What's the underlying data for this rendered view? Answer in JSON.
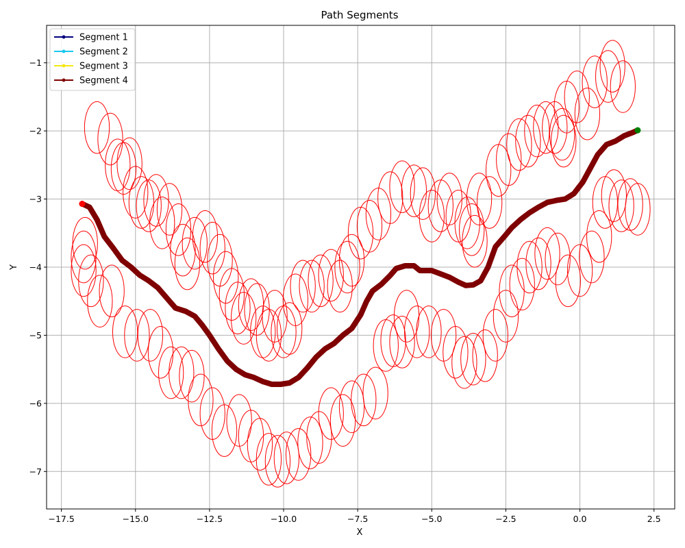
{
  "chart_data": {
    "type": "line",
    "title": "Path Segments",
    "xlabel": "X",
    "ylabel": "Y",
    "xlim": [
      -18.0,
      3.2
    ],
    "ylim": [
      -7.55,
      -0.45
    ],
    "x_ticks": [
      -17.5,
      -15.0,
      -12.5,
      -10.0,
      -7.5,
      -5.0,
      -2.5,
      0.0,
      2.5
    ],
    "x_tick_labels": [
      "−17.5",
      "−15.0",
      "−12.5",
      "−10.0",
      "−7.5",
      "−5.0",
      "−2.5",
      "0.0",
      "2.5"
    ],
    "y_ticks": [
      -7,
      -6,
      -5,
      -4,
      -3,
      -2,
      -1
    ],
    "y_tick_labels": [
      "−7",
      "−6",
      "−5",
      "−4",
      "−3",
      "−2",
      "−1"
    ],
    "grid": true,
    "legend_position": "top-left",
    "series": [
      {
        "name": "Segment 1",
        "color": "#00007f",
        "points": []
      },
      {
        "name": "Segment 2",
        "color": "#18c8f0",
        "points": []
      },
      {
        "name": "Segment 3",
        "color": "#f5e814",
        "points": []
      },
      {
        "name": "Segment 4",
        "color": "#7f0000",
        "points": [
          [
            -16.8,
            -3.07
          ],
          [
            -16.55,
            -3.12
          ],
          [
            -16.3,
            -3.3
          ],
          [
            -16.05,
            -3.55
          ],
          [
            -15.75,
            -3.72
          ],
          [
            -15.45,
            -3.9
          ],
          [
            -15.15,
            -4.0
          ],
          [
            -14.85,
            -4.12
          ],
          [
            -14.55,
            -4.2
          ],
          [
            -14.25,
            -4.3
          ],
          [
            -13.95,
            -4.45
          ],
          [
            -13.65,
            -4.6
          ],
          [
            -13.3,
            -4.65
          ],
          [
            -13.0,
            -4.72
          ],
          [
            -12.75,
            -4.85
          ],
          [
            -12.5,
            -5.0
          ],
          [
            -12.2,
            -5.2
          ],
          [
            -11.9,
            -5.38
          ],
          [
            -11.6,
            -5.5
          ],
          [
            -11.3,
            -5.58
          ],
          [
            -11.0,
            -5.62
          ],
          [
            -10.7,
            -5.68
          ],
          [
            -10.4,
            -5.72
          ],
          [
            -10.1,
            -5.72
          ],
          [
            -9.8,
            -5.7
          ],
          [
            -9.5,
            -5.62
          ],
          [
            -9.2,
            -5.48
          ],
          [
            -8.9,
            -5.32
          ],
          [
            -8.6,
            -5.2
          ],
          [
            -8.3,
            -5.12
          ],
          [
            -8.0,
            -5.0
          ],
          [
            -7.7,
            -4.9
          ],
          [
            -7.4,
            -4.7
          ],
          [
            -7.2,
            -4.5
          ],
          [
            -7.0,
            -4.35
          ],
          [
            -6.7,
            -4.25
          ],
          [
            -6.4,
            -4.12
          ],
          [
            -6.2,
            -4.02
          ],
          [
            -5.9,
            -3.98
          ],
          [
            -5.6,
            -3.98
          ],
          [
            -5.4,
            -4.05
          ],
          [
            -5.0,
            -4.05
          ],
          [
            -4.7,
            -4.1
          ],
          [
            -4.4,
            -4.15
          ],
          [
            -4.1,
            -4.22
          ],
          [
            -3.85,
            -4.27
          ],
          [
            -3.6,
            -4.26
          ],
          [
            -3.35,
            -4.2
          ],
          [
            -3.1,
            -4.0
          ],
          [
            -2.85,
            -3.7
          ],
          [
            -2.55,
            -3.55
          ],
          [
            -2.3,
            -3.42
          ],
          [
            -2.0,
            -3.3
          ],
          [
            -1.7,
            -3.2
          ],
          [
            -1.4,
            -3.12
          ],
          [
            -1.1,
            -3.05
          ],
          [
            -0.8,
            -3.02
          ],
          [
            -0.5,
            -3.0
          ],
          [
            -0.2,
            -2.92
          ],
          [
            0.1,
            -2.75
          ],
          [
            0.35,
            -2.55
          ],
          [
            0.6,
            -2.35
          ],
          [
            0.9,
            -2.2
          ],
          [
            1.2,
            -2.15
          ],
          [
            1.5,
            -2.07
          ],
          [
            1.8,
            -2.02
          ],
          [
            1.95,
            -1.99
          ]
        ]
      }
    ],
    "start_point": {
      "x": -16.8,
      "y": -3.07,
      "color": "#ff0000"
    },
    "end_point": {
      "x": 1.95,
      "y": -1.99,
      "color": "#008000"
    },
    "ellipse_color": "#ff0000",
    "ellipse_rx": 0.42,
    "ellipse_ry": 0.38,
    "ellipses": [
      [
        -16.3,
        -1.95
      ],
      [
        -15.85,
        -2.12
      ],
      [
        -15.6,
        -2.5
      ],
      [
        -15.4,
        -2.55
      ],
      [
        -15.2,
        -2.48
      ],
      [
        -15.0,
        -2.9
      ],
      [
        -14.8,
        -3.05
      ],
      [
        -14.55,
        -3.1
      ],
      [
        -14.3,
        -3.02
      ],
      [
        -14.1,
        -3.35
      ],
      [
        -13.85,
        -3.15
      ],
      [
        -13.55,
        -3.45
      ],
      [
        -13.4,
        -3.75
      ],
      [
        -13.25,
        -3.95
      ],
      [
        -13.0,
        -3.65
      ],
      [
        -12.65,
        -3.55
      ],
      [
        -12.4,
        -3.72
      ],
      [
        -12.15,
        -3.9
      ],
      [
        -11.95,
        -4.15
      ],
      [
        -11.75,
        -4.4
      ],
      [
        -11.55,
        -4.6
      ],
      [
        -11.35,
        -4.75
      ],
      [
        -11.1,
        -4.55
      ],
      [
        -10.9,
        -4.62
      ],
      [
        -10.7,
        -4.95
      ],
      [
        -10.5,
        -5.0
      ],
      [
        -10.3,
        -4.72
      ],
      [
        -10.0,
        -4.95
      ],
      [
        -9.8,
        -4.9
      ],
      [
        -9.6,
        -4.48
      ],
      [
        -9.35,
        -4.28
      ],
      [
        -9.05,
        -4.28
      ],
      [
        -8.75,
        -4.2
      ],
      [
        -8.4,
        -4.12
      ],
      [
        -8.1,
        -4.28
      ],
      [
        -7.85,
        -4.0
      ],
      [
        -7.7,
        -3.9
      ],
      [
        -7.4,
        -3.5
      ],
      [
        -7.1,
        -3.4
      ],
      [
        -6.8,
        -3.22
      ],
      [
        -6.4,
        -2.98
      ],
      [
        -6.0,
        -2.82
      ],
      [
        -5.6,
        -2.88
      ],
      [
        -5.3,
        -2.92
      ],
      [
        -5.0,
        -3.25
      ],
      [
        -4.7,
        -3.1
      ],
      [
        -4.4,
        -3.0
      ],
      [
        -4.1,
        -3.25
      ],
      [
        -3.8,
        -3.35
      ],
      [
        -3.65,
        -3.45
      ],
      [
        -3.55,
        -3.62
      ],
      [
        -3.4,
        -3.0
      ],
      [
        -3.05,
        -3.05
      ],
      [
        -2.75,
        -2.58
      ],
      [
        -2.4,
        -2.42
      ],
      [
        -2.05,
        -2.2
      ],
      [
        -1.75,
        -2.15
      ],
      [
        -1.45,
        -2.0
      ],
      [
        -1.15,
        -1.95
      ],
      [
        -0.85,
        -1.95
      ],
      [
        -0.6,
        -2.05
      ],
      [
        -0.55,
        -2.15
      ],
      [
        -0.45,
        -1.65
      ],
      [
        -0.1,
        -1.5
      ],
      [
        0.25,
        -1.75
      ],
      [
        0.5,
        -1.28
      ],
      [
        0.95,
        -1.2
      ],
      [
        1.1,
        -1.05
      ],
      [
        1.45,
        -1.35
      ],
      [
        0.85,
        -3.05
      ],
      [
        1.15,
        -2.95
      ],
      [
        1.4,
        -3.1
      ],
      [
        1.7,
        -3.08
      ],
      [
        1.95,
        -3.15
      ],
      [
        0.65,
        -3.55
      ],
      [
        0.4,
        -3.85
      ],
      [
        0.0,
        -4.05
      ],
      [
        -0.4,
        -4.2
      ],
      [
        -0.75,
        -3.88
      ],
      [
        -1.1,
        -3.8
      ],
      [
        -1.4,
        -3.95
      ],
      [
        -1.7,
        -4.0
      ],
      [
        -1.95,
        -4.25
      ],
      [
        -2.3,
        -4.35
      ],
      [
        -2.5,
        -4.72
      ],
      [
        -2.85,
        -5.0
      ],
      [
        -3.2,
        -5.3
      ],
      [
        -3.6,
        -5.35
      ],
      [
        -3.9,
        -5.4
      ],
      [
        -4.2,
        -5.25
      ],
      [
        -4.6,
        -5.0
      ],
      [
        -5.1,
        -4.95
      ],
      [
        -5.5,
        -4.95
      ],
      [
        -5.85,
        -4.72
      ],
      [
        -6.0,
        -5.1
      ],
      [
        -6.3,
        -5.08
      ],
      [
        -6.55,
        -5.15
      ],
      [
        -6.9,
        -5.85
      ],
      [
        -7.3,
        -5.95
      ],
      [
        -7.7,
        -6.05
      ],
      [
        -8.0,
        -6.25
      ],
      [
        -8.4,
        -6.15
      ],
      [
        -8.8,
        -6.5
      ],
      [
        -9.1,
        -6.58
      ],
      [
        -9.5,
        -6.75
      ],
      [
        -9.9,
        -6.8
      ],
      [
        -10.2,
        -6.85
      ],
      [
        -10.5,
        -6.82
      ],
      [
        -10.8,
        -6.6
      ],
      [
        -11.1,
        -6.48
      ],
      [
        -11.5,
        -6.25
      ],
      [
        -12.0,
        -6.4
      ],
      [
        -12.4,
        -6.15
      ],
      [
        -12.8,
        -5.95
      ],
      [
        -13.1,
        -5.6
      ],
      [
        -13.45,
        -5.55
      ],
      [
        -13.8,
        -5.55
      ],
      [
        -14.15,
        -5.25
      ],
      [
        -14.5,
        -5.0
      ],
      [
        -14.95,
        -5.0
      ],
      [
        -15.35,
        -4.95
      ],
      [
        -15.8,
        -4.35
      ],
      [
        -16.2,
        -4.5
      ],
      [
        -16.5,
        -4.2
      ],
      [
        -16.75,
        -4.05
      ],
      [
        -16.75,
        -3.85
      ],
      [
        -16.7,
        -3.65
      ]
    ]
  }
}
